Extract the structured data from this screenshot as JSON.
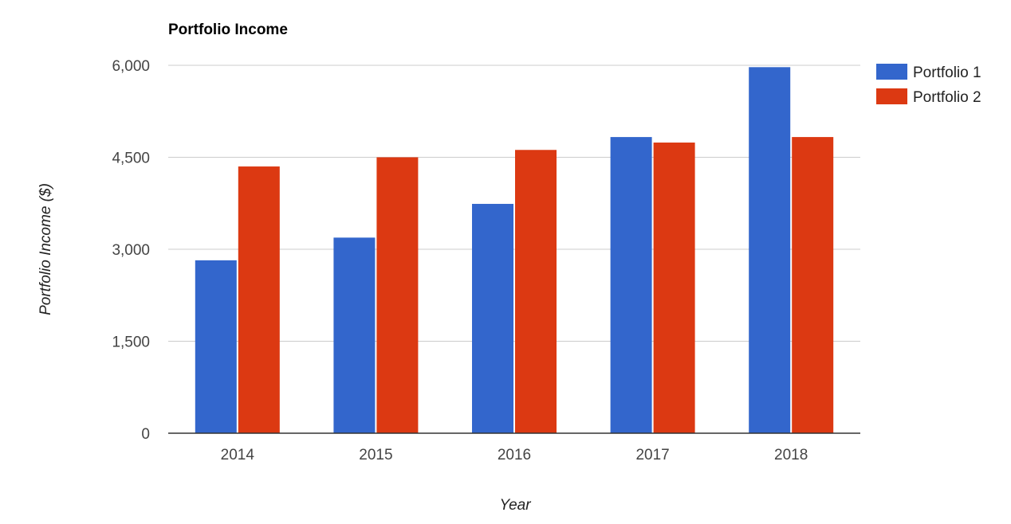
{
  "chart_data": {
    "type": "bar",
    "title": "Portfolio Income",
    "xlabel": "Year",
    "ylabel": "Portfolio Income ($)",
    "categories": [
      "2014",
      "2015",
      "2016",
      "2017",
      "2018"
    ],
    "series": [
      {
        "name": "Portfolio 1",
        "color": "#3366cc",
        "values": [
          2820,
          3190,
          3740,
          4830,
          5970
        ]
      },
      {
        "name": "Portfolio 2",
        "color": "#dc3912",
        "values": [
          4350,
          4500,
          4620,
          4740,
          4830
        ]
      }
    ],
    "ylim": [
      0,
      6000
    ],
    "yticks": [
      0,
      1500,
      3000,
      4500,
      6000
    ],
    "ytick_labels": [
      "0",
      "1,500",
      "3,000",
      "4,500",
      "6,000"
    ],
    "grid": true,
    "legend_position": "right"
  }
}
